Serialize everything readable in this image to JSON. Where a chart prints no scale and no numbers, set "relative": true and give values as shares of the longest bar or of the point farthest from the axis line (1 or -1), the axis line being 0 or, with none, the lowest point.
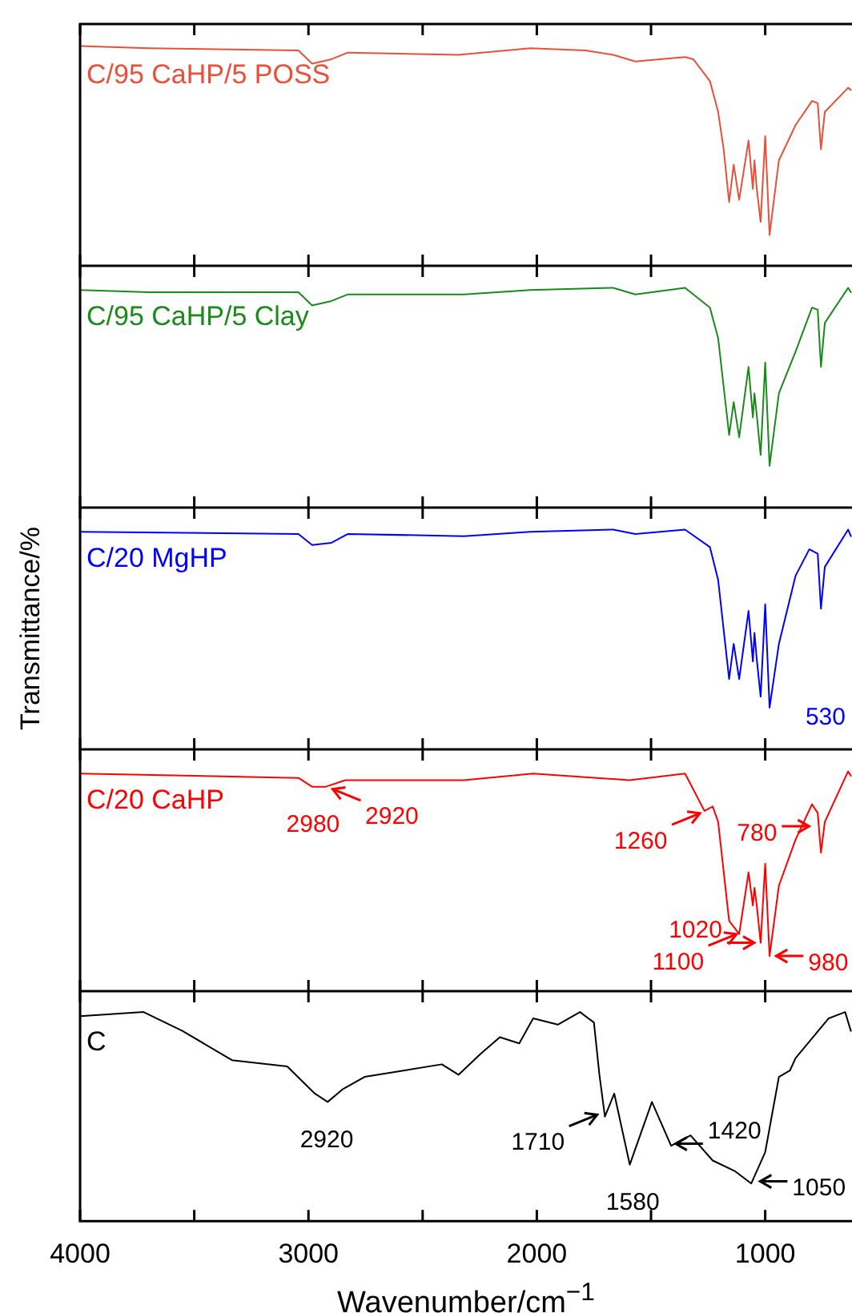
{
  "chart_data": [
    {
      "type": "line",
      "relative": true,
      "xlim": [
        4000,
        620
      ],
      "xticks": [
        4000,
        {
          "value": 3500,
          "label": null
        },
        3000,
        {
          "value": 2500,
          "label": null
        },
        2000,
        {
          "value": 1500,
          "label": null
        },
        1000
      ],
      "tick_labels": false,
      "x": [
        4000,
        3698,
        3044,
        2984,
        2899,
        2827,
        2343,
        2029,
        1787,
        1666,
        1569,
        1351,
        1315,
        1242,
        1206,
        1182,
        1158,
        1138,
        1114,
        1073,
        1054,
        1047,
        1037,
        1020,
        1000,
        981,
        940,
        867,
        795,
        770,
        756,
        739,
        637,
        625
      ],
      "series": [
        {
          "name": "C/95 CaHP/5 POSS",
          "color": "#e8503a",
          "values": [
            1.0,
            0.99,
            0.98,
            0.92,
            0.94,
            0.97,
            0.96,
            0.99,
            0.98,
            0.96,
            0.93,
            0.95,
            0.94,
            0.84,
            0.7,
            0.53,
            0.29,
            0.46,
            0.3,
            0.57,
            0.35,
            0.48,
            0.35,
            0.2,
            0.59,
            0.14,
            0.48,
            0.64,
            0.75,
            0.74,
            0.53,
            0.7,
            0.81,
            0.8
          ]
        }
      ]
    },
    {
      "type": "line",
      "relative": true,
      "xlim": [
        4000,
        620
      ],
      "xticks": [
        4000,
        {
          "value": 3500,
          "label": null
        },
        3000,
        {
          "value": 2500,
          "label": null
        },
        2000,
        {
          "value": 1500,
          "label": null
        },
        1000
      ],
      "tick_labels": false,
      "x": [
        4000,
        3698,
        3044,
        2984,
        2899,
        2827,
        2319,
        2029,
        1666,
        1569,
        1351,
        1242,
        1206,
        1158,
        1138,
        1114,
        1073,
        1054,
        1047,
        1037,
        1020,
        1000,
        981,
        940,
        867,
        795,
        770,
        756,
        739,
        637,
        625
      ],
      "series": [
        {
          "name": "C/95 CaHP/5 Clay",
          "color": "#1a8a1a",
          "values": [
            0.99,
            0.98,
            0.98,
            0.92,
            0.94,
            0.97,
            0.97,
            0.99,
            1.0,
            0.97,
            1.0,
            0.91,
            0.77,
            0.33,
            0.48,
            0.32,
            0.64,
            0.41,
            0.52,
            0.42,
            0.24,
            0.66,
            0.19,
            0.52,
            0.71,
            0.91,
            0.9,
            0.64,
            0.84,
            1.0,
            0.98
          ]
        }
      ]
    },
    {
      "type": "line",
      "relative": true,
      "xlim": [
        4000,
        620
      ],
      "xticks": [
        4000,
        {
          "value": 3500,
          "label": null
        },
        3000,
        {
          "value": 2500,
          "label": null
        },
        2000,
        {
          "value": 1500,
          "label": null
        },
        1000
      ],
      "tick_labels": false,
      "ylabel": "Transmittance/%",
      "x": [
        4000,
        3044,
        2984,
        2899,
        2827,
        2319,
        2029,
        1666,
        1569,
        1351,
        1242,
        1206,
        1158,
        1138,
        1114,
        1073,
        1054,
        1047,
        1037,
        1020,
        1000,
        981,
        940,
        867,
        807,
        770,
        756,
        739,
        637,
        625
      ],
      "series": [
        {
          "name": "C/20 MgHP",
          "color": "#0000ff",
          "values": [
            0.99,
            0.98,
            0.93,
            0.94,
            0.98,
            0.97,
            0.99,
            1.0,
            0.98,
            1.0,
            0.92,
            0.77,
            0.32,
            0.48,
            0.32,
            0.63,
            0.4,
            0.53,
            0.41,
            0.24,
            0.66,
            0.19,
            0.48,
            0.79,
            0.91,
            0.89,
            0.64,
            0.83,
            1.0,
            0.97
          ]
        }
      ],
      "annotations": [
        "530"
      ]
    },
    {
      "type": "line",
      "relative": true,
      "xlim": [
        4000,
        620
      ],
      "xticks": [
        4000,
        {
          "value": 3500,
          "label": null
        },
        3000,
        {
          "value": 2500,
          "label": null
        },
        2000,
        {
          "value": 1500,
          "label": null
        },
        1000
      ],
      "tick_labels": false,
      "x": [
        4000,
        3044,
        2984,
        2924,
        2839,
        2319,
        2017,
        1594,
        1351,
        1266,
        1230,
        1206,
        1158,
        1114,
        1073,
        1054,
        1047,
        1037,
        1020,
        1000,
        981,
        940,
        867,
        795,
        770,
        756,
        739,
        637,
        625
      ],
      "series": [
        {
          "name": "C/20 CaHP",
          "color": "#ff0000",
          "values": [
            0.99,
            0.97,
            0.93,
            0.93,
            0.96,
            0.96,
            0.99,
            0.96,
            0.99,
            0.82,
            0.84,
            0.77,
            0.32,
            0.26,
            0.54,
            0.39,
            0.47,
            0.39,
            0.22,
            0.58,
            0.16,
            0.48,
            0.69,
            0.85,
            0.81,
            0.63,
            0.77,
            1.0,
            0.98
          ]
        }
      ],
      "annotations": [
        {
          "text": "2980",
          "x": 2980,
          "y": 0.93
        },
        {
          "text": "2920",
          "x": 2920,
          "y": 0.93
        },
        {
          "text": "1260",
          "x": 1260,
          "y": 0.82
        },
        {
          "text": "1100",
          "x": 1100,
          "y": 0.27
        },
        {
          "text": "1020",
          "x": 1020,
          "y": 0.22
        },
        {
          "text": "980",
          "x": 980,
          "y": 0.16
        },
        {
          "text": "780",
          "x": 780,
          "y": 0.75
        }
      ]
    },
    {
      "type": "line",
      "relative": true,
      "xlim": [
        4000,
        620
      ],
      "xticks": [
        4000,
        {
          "value": 3500,
          "label": null
        },
        3000,
        {
          "value": 2500,
          "label": null
        },
        2000,
        {
          "value": 1500,
          "label": null
        },
        1000
      ],
      "tick_labels": "x",
      "xlabel": "Wavenumber/cm$^{−1}$",
      "x": [
        4000,
        3722,
        3552,
        3335,
        3093,
        2972,
        2916,
        2851,
        2754,
        2416,
        2343,
        2246,
        2162,
        2077,
        2016,
        1908,
        1811,
        1750,
        1726,
        1702,
        1661,
        1593,
        1496,
        1412,
        1327,
        1230,
        1134,
        1061,
        1000,
        940,
        892,
        867,
        722,
        650,
        625
      ],
      "series": [
        {
          "name": "C",
          "color": "#000000",
          "values": [
            0.98,
            1.0,
            0.91,
            0.77,
            0.74,
            0.61,
            0.57,
            0.63,
            0.69,
            0.75,
            0.7,
            0.8,
            0.88,
            0.85,
            0.97,
            0.94,
            1.0,
            0.95,
            0.7,
            0.5,
            0.61,
            0.27,
            0.57,
            0.36,
            0.41,
            0.29,
            0.24,
            0.18,
            0.33,
            0.69,
            0.72,
            0.78,
            0.97,
            1.0,
            0.91
          ]
        }
      ],
      "annotations": [
        {
          "text": "2920",
          "x": 2920,
          "y": 0.57
        },
        {
          "text": "1710",
          "x": 1710,
          "y": 0.52
        },
        {
          "text": "1580",
          "x": 1580,
          "y": 0.27
        },
        {
          "text": "1420",
          "x": 1420,
          "y": 0.37
        },
        {
          "text": "1050",
          "x": 1050,
          "y": 0.19
        }
      ]
    }
  ]
}
